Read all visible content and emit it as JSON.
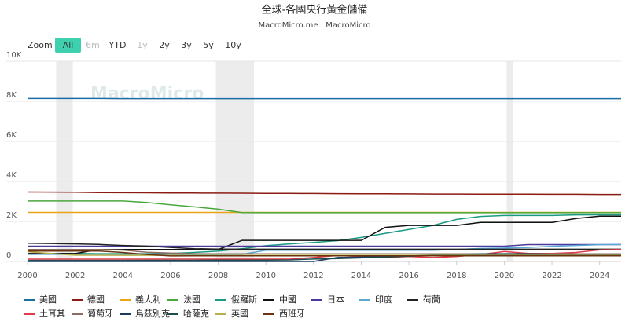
{
  "chart_data": {
    "type": "line",
    "title": "全球-各國央行黃金儲備",
    "subtitle": "MacroMicro.me | MacroMicro",
    "watermark": "MacroMicro",
    "zoom_label": "Zoom",
    "zoom_buttons": [
      "All",
      "6m",
      "YTD",
      "1y",
      "2y",
      "3y",
      "5y",
      "10y"
    ],
    "zoom_active": "All",
    "zoom_disabled": [
      "6m",
      "1y"
    ],
    "shaded_ranges": [
      [
        2001.2,
        2001.9
      ],
      [
        2007.9,
        2009.5
      ],
      [
        2020.1,
        2020.35
      ]
    ],
    "grid": true,
    "xlim": [
      2000,
      2024.9
    ],
    "xticks": [
      2000,
      2002,
      2004,
      2006,
      2008,
      2010,
      2012,
      2014,
      2016,
      2018,
      2020,
      2022,
      2024
    ],
    "ylim": [
      0,
      10000
    ],
    "yticks": [
      {
        "value": 0,
        "label": "0"
      },
      {
        "value": 2000,
        "label": "2K"
      },
      {
        "value": 4000,
        "label": "4K"
      },
      {
        "value": 6000,
        "label": "6K"
      },
      {
        "value": 8000,
        "label": "8K"
      },
      {
        "value": 10000,
        "label": "10K"
      }
    ],
    "x": [
      2000,
      2001,
      2002,
      2003,
      2004,
      2005,
      2006,
      2007,
      2008,
      2009,
      2010,
      2011,
      2012,
      2013,
      2014,
      2015,
      2016,
      2017,
      2018,
      2019,
      2020,
      2021,
      2022,
      2023,
      2024,
      2024.9
    ],
    "series": [
      {
        "name": "美國",
        "color": "#1b6ea3",
        "values": [
          8140,
          8140,
          8140,
          8140,
          8135,
          8135,
          8135,
          8135,
          8135,
          8135,
          8135,
          8135,
          8135,
          8135,
          8135,
          8135,
          8135,
          8135,
          8135,
          8135,
          8135,
          8135,
          8135,
          8135,
          8135,
          8135
        ]
      },
      {
        "name": "德國",
        "color": "#8b1c13",
        "values": [
          3470,
          3465,
          3460,
          3445,
          3435,
          3430,
          3425,
          3420,
          3415,
          3410,
          3405,
          3400,
          3395,
          3390,
          3385,
          3380,
          3375,
          3370,
          3370,
          3365,
          3365,
          3360,
          3355,
          3355,
          3350,
          3350
        ]
      },
      {
        "name": "義大利",
        "color": "#e8a317",
        "values": [
          2450,
          2450,
          2450,
          2450,
          2450,
          2450,
          2450,
          2450,
          2450,
          2450,
          2450,
          2450,
          2450,
          2450,
          2450,
          2450,
          2450,
          2450,
          2450,
          2450,
          2450,
          2450,
          2450,
          2450,
          2450,
          2450
        ]
      },
      {
        "name": "法國",
        "color": "#49a83b",
        "values": [
          3025,
          3025,
          3025,
          3025,
          3025,
          2950,
          2830,
          2730,
          2610,
          2440,
          2436,
          2436,
          2436,
          2436,
          2436,
          2436,
          2436,
          2436,
          2436,
          2436,
          2436,
          2436,
          2436,
          2436,
          2437,
          2437
        ]
      },
      {
        "name": "俄羅斯",
        "color": "#1a9a84",
        "values": [
          380,
          400,
          400,
          390,
          390,
          390,
          400,
          450,
          520,
          640,
          790,
          880,
          950,
          1040,
          1200,
          1400,
          1600,
          1800,
          2100,
          2250,
          2300,
          2300,
          2300,
          2330,
          2335,
          2335
        ]
      },
      {
        "name": "中國",
        "color": "#111111",
        "values": [
          395,
          395,
          395,
          600,
          600,
          600,
          600,
          600,
          600,
          1054,
          1054,
          1054,
          1054,
          1054,
          1054,
          1700,
          1800,
          1800,
          1800,
          1950,
          1950,
          1950,
          1950,
          2150,
          2264,
          2264
        ]
      },
      {
        "name": "日本",
        "color": "#4b3a9e",
        "values": [
          765,
          765,
          765,
          765,
          765,
          765,
          765,
          765,
          765,
          765,
          765,
          765,
          765,
          765,
          765,
          765,
          765,
          765,
          765,
          765,
          765,
          845,
          845,
          845,
          845,
          845
        ]
      },
      {
        "name": "印度",
        "color": "#5aa9d6",
        "values": [
          357,
          357,
          357,
          357,
          357,
          357,
          357,
          357,
          357,
          357,
          558,
          558,
          558,
          558,
          558,
          558,
          558,
          558,
          600,
          650,
          670,
          700,
          760,
          800,
          840,
          850
        ]
      },
      {
        "name": "荷蘭",
        "color": "#222222",
        "values": [
          910,
          900,
          880,
          850,
          800,
          770,
          700,
          640,
          620,
          612,
          612,
          612,
          612,
          612,
          612,
          612,
          612,
          612,
          612,
          612,
          612,
          612,
          612,
          612,
          612,
          612
        ]
      },
      {
        "name": "土耳其",
        "color": "#e23b4a",
        "values": [
          116,
          116,
          116,
          116,
          116,
          116,
          116,
          116,
          116,
          116,
          116,
          116,
          200,
          300,
          250,
          200,
          250,
          200,
          250,
          350,
          500,
          400,
          400,
          450,
          580,
          600
        ]
      },
      {
        "name": "葡萄牙",
        "color": "#8c6d62",
        "values": [
          600,
          600,
          600,
          600,
          570,
          460,
          420,
          390,
          382,
          382,
          382,
          382,
          382,
          382,
          382,
          382,
          382,
          382,
          382,
          382,
          382,
          382,
          382,
          382,
          382,
          382
        ]
      },
      {
        "name": "烏茲別克",
        "color": "#1e3a5f",
        "values": [
          0,
          0,
          0,
          0,
          0,
          0,
          0,
          0,
          0,
          0,
          0,
          0,
          0,
          200,
          220,
          250,
          300,
          320,
          330,
          340,
          330,
          320,
          340,
          360,
          360,
          360
        ]
      },
      {
        "name": "哈薩克",
        "color": "#1d4d4f",
        "values": [
          56,
          56,
          56,
          56,
          56,
          60,
          60,
          60,
          70,
          70,
          70,
          80,
          120,
          150,
          180,
          220,
          260,
          310,
          350,
          380,
          390,
          390,
          360,
          300,
          300,
          300
        ]
      },
      {
        "name": "英國",
        "color": "#b9b04a",
        "values": [
          487,
          400,
          313,
          312,
          311,
          311,
          311,
          311,
          311,
          311,
          311,
          311,
          311,
          311,
          311,
          311,
          311,
          311,
          311,
          311,
          311,
          311,
          311,
          311,
          311,
          311
        ]
      },
      {
        "name": "西班牙",
        "color": "#6b3410",
        "values": [
          523,
          520,
          520,
          520,
          450,
          350,
          280,
          282,
          282,
          282,
          282,
          282,
          282,
          282,
          282,
          282,
          282,
          282,
          282,
          282,
          282,
          282,
          282,
          282,
          282,
          282
        ]
      }
    ]
  }
}
